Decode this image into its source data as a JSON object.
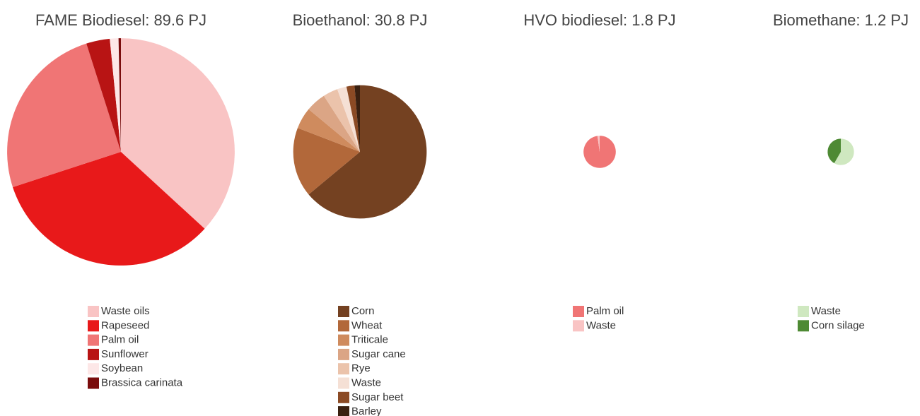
{
  "chart_data": [
    {
      "type": "pie",
      "title": "FAME Biodiesel: 89.6 PJ",
      "categories": [
        "Waste oils",
        "Rapeseed",
        "Palm oil",
        "Sunflower",
        "Soybean",
        "Brassica carinata"
      ],
      "values": [
        33.0,
        29.7,
        22.5,
        3.0,
        1.1,
        0.3
      ],
      "colors": [
        "#f9c4c4",
        "#e8191a",
        "#f07575",
        "#b81414",
        "#fde7e7",
        "#7a0c0c"
      ]
    },
    {
      "type": "pie",
      "title": "Bioethanol: 30.8 PJ",
      "categories": [
        "Corn",
        "Wheat",
        "Triticale",
        "Sugar cane",
        "Rye",
        "Waste",
        "Sugar beet",
        "Barley"
      ],
      "values": [
        19.7,
        5.2,
        1.6,
        1.5,
        1.1,
        0.7,
        0.6,
        0.4
      ],
      "colors": [
        "#744121",
        "#b2683a",
        "#cf8b5e",
        "#dba585",
        "#ebc3ab",
        "#f5e0d5",
        "#8b4a24",
        "#3a2010"
      ]
    },
    {
      "type": "pie",
      "title": "HVO biodiesel: 1.8 PJ",
      "categories": [
        "Palm oil",
        "Waste"
      ],
      "values": [
        1.76,
        0.04
      ],
      "colors": [
        "#f07575",
        "#f9c4c4"
      ]
    },
    {
      "type": "pie",
      "title": "Biomethane: 1.2 PJ",
      "categories": [
        "Waste",
        "Corn silage"
      ],
      "values": [
        0.7,
        0.5
      ],
      "colors": [
        "#cfe8c0",
        "#4e8a34"
      ]
    }
  ]
}
